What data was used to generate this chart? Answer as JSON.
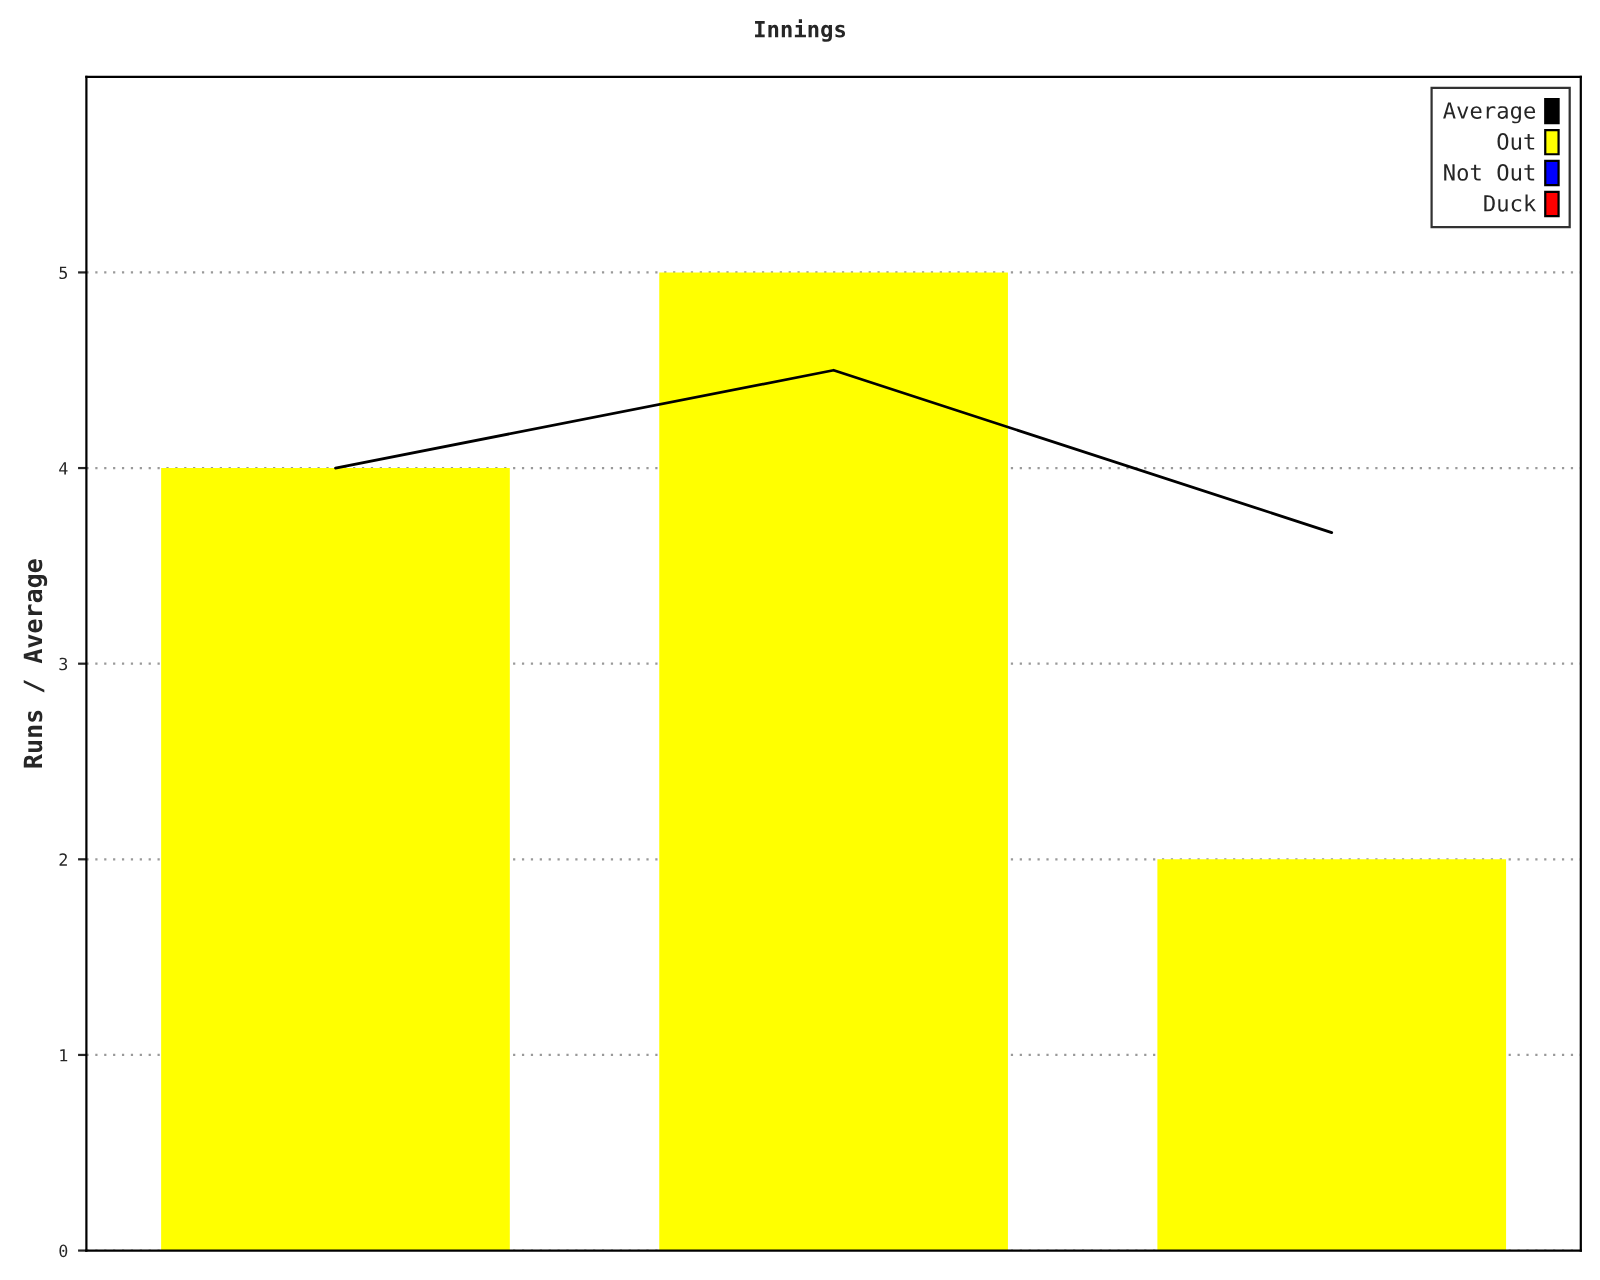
{
  "chart_data": {
    "type": "bar",
    "title": "Innings",
    "ylabel": "Runs / Average",
    "categories": [
      null,
      null,
      null
    ],
    "series": [
      {
        "name": "Average",
        "type": "line",
        "color": "#000000",
        "values": [
          4,
          4.5,
          3.67
        ]
      },
      {
        "name": "Out",
        "color": "#ffff00",
        "values": [
          4,
          5,
          2
        ]
      },
      {
        "name": "Not Out",
        "type": "bar",
        "color": "#0000ff",
        "values": [
          null,
          null,
          null
        ]
      },
      {
        "name": "Duck",
        "type": "bar",
        "color": "#ff0000",
        "values": [
          null,
          null,
          null
        ]
      }
    ],
    "ylim": [
      0,
      6
    ],
    "yticks": [
      0,
      1,
      2,
      3,
      4,
      5
    ],
    "grid": "y",
    "legend": "top right"
  }
}
